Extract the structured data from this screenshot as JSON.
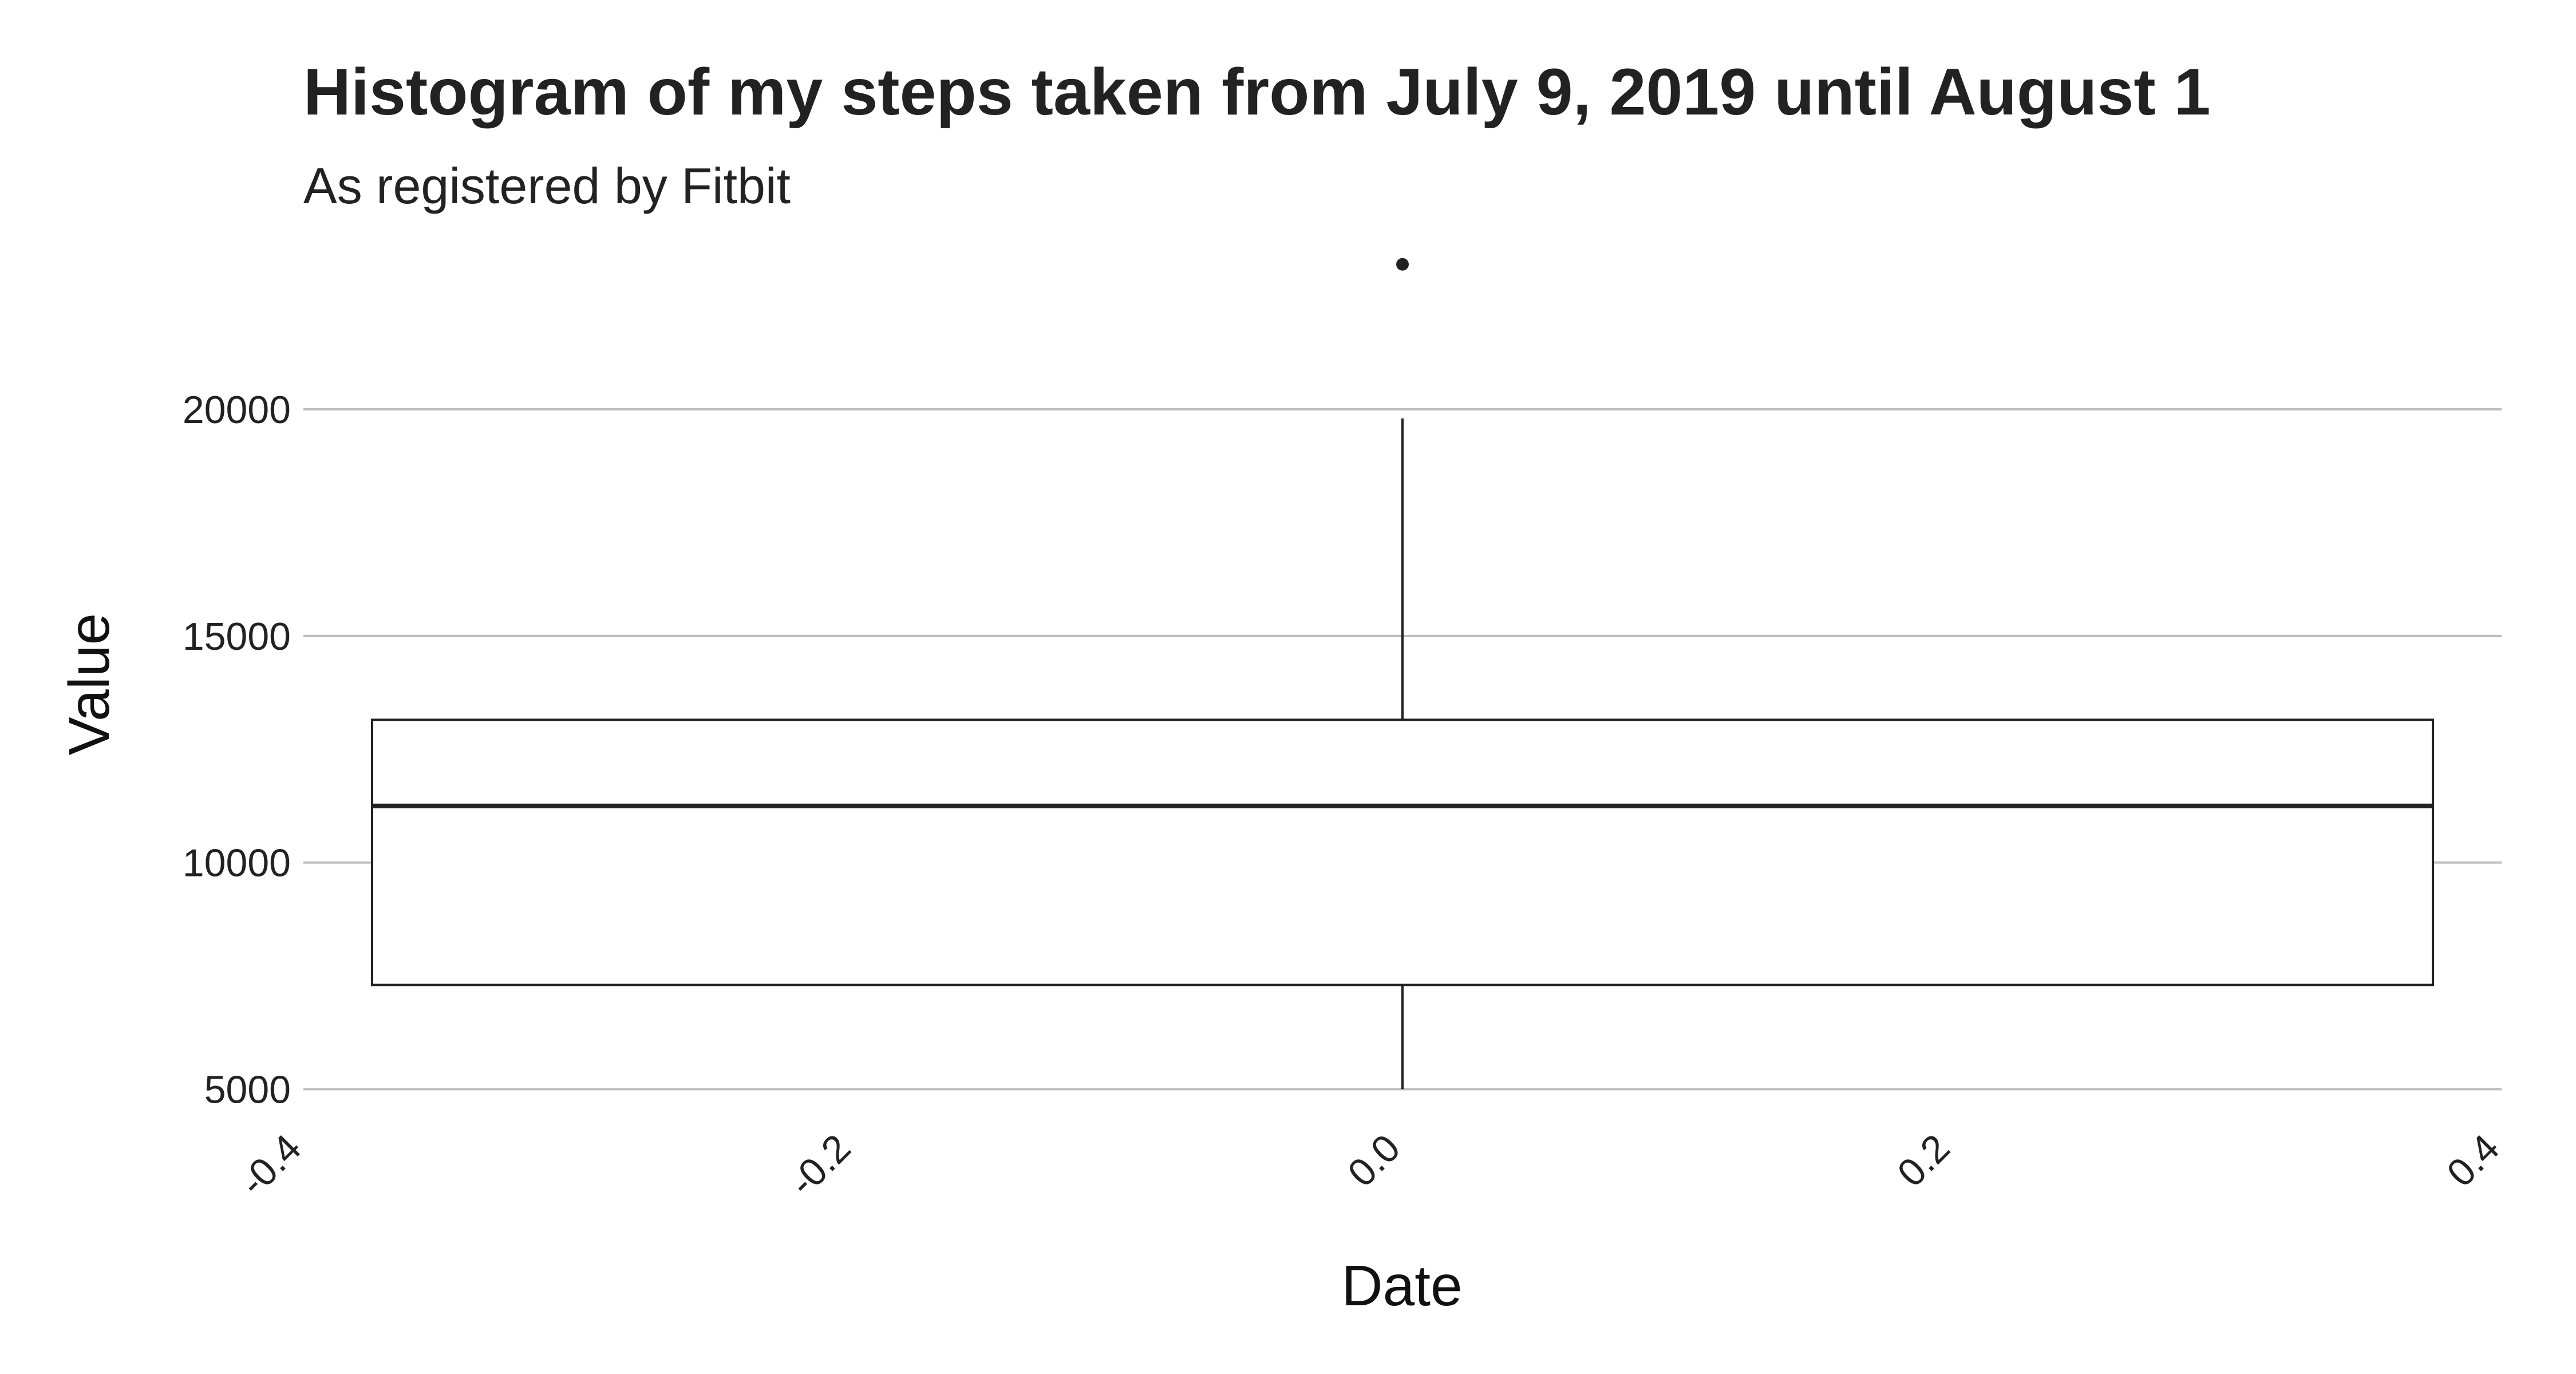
{
  "chart_data": {
    "type": "box",
    "title": "Histogram of my steps taken from July 9, 2019 until August 1",
    "subtitle": "As registered by Fitbit",
    "xlabel": "Date",
    "ylabel": "Value",
    "xlim": [
      -0.4,
      0.4
    ],
    "ylim": [
      4400,
      23600
    ],
    "x_ticks": [
      -0.4,
      -0.2,
      0.0,
      0.2,
      0.4
    ],
    "x_tick_labels": [
      "-0.4",
      "-0.2",
      "0.0",
      "0.2",
      "0.4"
    ],
    "y_ticks": [
      5000,
      10000,
      15000,
      20000
    ],
    "y_tick_labels": [
      "5000",
      "10000",
      "15000",
      "20000"
    ],
    "grid": "horizontal",
    "box": {
      "x": 0.0,
      "width": 0.75,
      "whisker_low": 5000,
      "q1": 7300,
      "median": 11250,
      "q3": 13150,
      "whisker_high": 19800,
      "outliers": [
        23200
      ]
    }
  }
}
